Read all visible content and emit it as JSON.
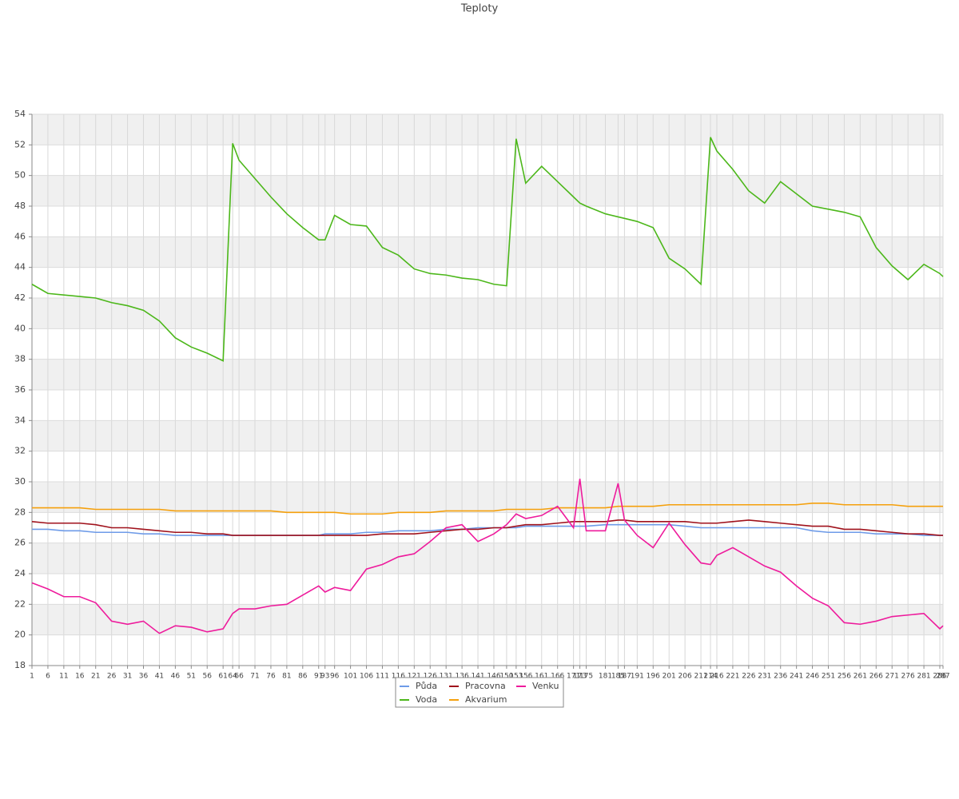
{
  "chart_data": {
    "type": "line",
    "title": "Teploty",
    "x": [
      1,
      6,
      11,
      16,
      21,
      26,
      31,
      36,
      41,
      46,
      51,
      56,
      61,
      64,
      66,
      71,
      76,
      81,
      86,
      91,
      93,
      96,
      101,
      106,
      111,
      116,
      121,
      126,
      131,
      136,
      141,
      146,
      150,
      153,
      156,
      161,
      166,
      171,
      173,
      175,
      181,
      185,
      187,
      191,
      196,
      201,
      206,
      211,
      214,
      216,
      221,
      226,
      231,
      236,
      241,
      246,
      251,
      256,
      261,
      266,
      271,
      276,
      281,
      286,
      287
    ],
    "xlim": [
      1,
      287
    ],
    "ylim": [
      18,
      54
    ],
    "yticks": [
      18,
      20,
      22,
      24,
      26,
      28,
      30,
      32,
      34,
      36,
      38,
      40,
      42,
      44,
      46,
      48,
      50,
      52,
      54
    ],
    "grid": true,
    "legend_position": "bottom",
    "series": [
      {
        "name": "Půda",
        "color": "#6e9be8",
        "values": [
          26.9,
          26.9,
          26.8,
          26.8,
          26.7,
          26.7,
          26.7,
          26.6,
          26.6,
          26.5,
          26.5,
          26.5,
          26.5,
          26.5,
          26.5,
          26.5,
          26.5,
          26.5,
          26.5,
          26.5,
          26.6,
          26.6,
          26.6,
          26.7,
          26.7,
          26.8,
          26.8,
          26.8,
          26.9,
          26.9,
          27.0,
          27.0,
          27.0,
          27.0,
          27.1,
          27.1,
          27.1,
          27.1,
          27.1,
          27.1,
          27.2,
          27.2,
          27.2,
          27.2,
          27.2,
          27.2,
          27.1,
          27.0,
          27.0,
          27.0,
          27.0,
          27.0,
          27.0,
          27.0,
          27.0,
          26.8,
          26.7,
          26.7,
          26.7,
          26.6,
          26.6,
          26.6,
          26.5,
          26.5,
          26.5
        ]
      },
      {
        "name": "Voda",
        "color": "#4cb71a",
        "values": [
          42.9,
          42.3,
          42.2,
          42.1,
          42.0,
          41.7,
          41.5,
          41.2,
          40.5,
          39.4,
          38.8,
          38.4,
          37.9,
          52.1,
          51.0,
          49.8,
          48.6,
          47.5,
          46.6,
          45.8,
          45.8,
          47.4,
          46.8,
          46.7,
          45.3,
          44.8,
          43.9,
          43.6,
          43.5,
          43.3,
          43.2,
          42.9,
          42.8,
          52.4,
          49.5,
          50.6,
          49.6,
          48.6,
          48.2,
          48.0,
          47.5,
          47.3,
          47.2,
          47.0,
          46.6,
          44.6,
          43.9,
          42.9,
          52.5,
          51.6,
          50.4,
          49.0,
          48.2,
          49.6,
          48.8,
          48.0,
          47.8,
          47.6,
          47.3,
          45.3,
          44.1,
          43.2,
          44.2,
          43.6,
          43.4
        ]
      },
      {
        "name": "Pracovna",
        "color": "#a0121c",
        "values": [
          27.4,
          27.3,
          27.3,
          27.3,
          27.2,
          27.0,
          27.0,
          26.9,
          26.8,
          26.7,
          26.7,
          26.6,
          26.6,
          26.5,
          26.5,
          26.5,
          26.5,
          26.5,
          26.5,
          26.5,
          26.5,
          26.5,
          26.5,
          26.5,
          26.6,
          26.6,
          26.6,
          26.7,
          26.8,
          26.9,
          26.9,
          27.0,
          27.0,
          27.1,
          27.2,
          27.2,
          27.3,
          27.4,
          27.4,
          27.4,
          27.4,
          27.5,
          27.5,
          27.4,
          27.4,
          27.4,
          27.4,
          27.3,
          27.3,
          27.3,
          27.4,
          27.5,
          27.4,
          27.3,
          27.2,
          27.1,
          27.1,
          26.9,
          26.9,
          26.8,
          26.7,
          26.6,
          26.6,
          26.5,
          26.5
        ]
      },
      {
        "name": "Akvarium",
        "color": "#f5a00c",
        "values": [
          28.3,
          28.3,
          28.3,
          28.3,
          28.2,
          28.2,
          28.2,
          28.2,
          28.2,
          28.1,
          28.1,
          28.1,
          28.1,
          28.1,
          28.1,
          28.1,
          28.1,
          28.0,
          28.0,
          28.0,
          28.0,
          28.0,
          27.9,
          27.9,
          27.9,
          28.0,
          28.0,
          28.0,
          28.1,
          28.1,
          28.1,
          28.1,
          28.2,
          28.2,
          28.2,
          28.2,
          28.3,
          28.3,
          28.3,
          28.3,
          28.3,
          28.4,
          28.4,
          28.4,
          28.4,
          28.5,
          28.5,
          28.5,
          28.5,
          28.5,
          28.5,
          28.5,
          28.5,
          28.5,
          28.5,
          28.6,
          28.6,
          28.5,
          28.5,
          28.5,
          28.5,
          28.4,
          28.4,
          28.4,
          28.4
        ]
      },
      {
        "name": "Venku",
        "color": "#ee1b9c",
        "values": [
          23.4,
          23.0,
          22.5,
          22.5,
          22.1,
          20.9,
          20.7,
          20.9,
          20.1,
          20.6,
          20.5,
          20.2,
          20.4,
          21.4,
          21.7,
          21.7,
          21.9,
          22.0,
          22.6,
          23.2,
          22.8,
          23.1,
          22.9,
          24.3,
          24.6,
          25.1,
          25.3,
          26.1,
          27.0,
          27.2,
          26.1,
          26.6,
          27.2,
          27.9,
          27.6,
          27.8,
          28.4,
          27.0,
          30.2,
          26.8,
          26.8,
          29.9,
          27.5,
          26.5,
          25.7,
          27.3,
          25.9,
          24.7,
          24.6,
          25.2,
          25.7,
          25.1,
          24.5,
          24.1,
          23.2,
          22.4,
          21.9,
          20.8,
          20.7,
          20.9,
          21.2,
          21.3,
          21.4,
          20.4,
          20.6
        ]
      }
    ]
  }
}
